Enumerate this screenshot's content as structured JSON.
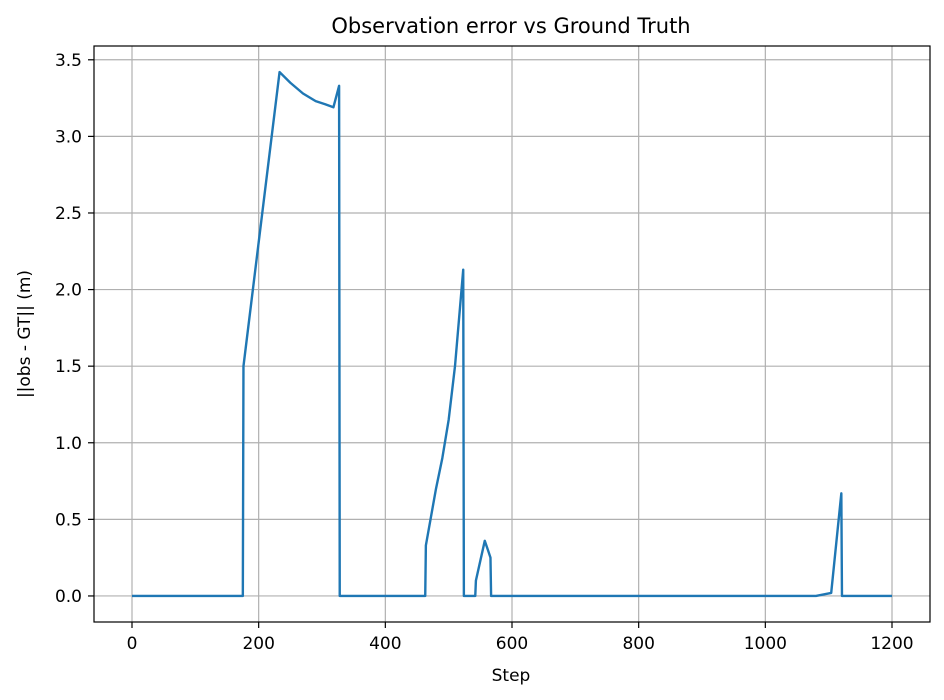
{
  "chart_data": {
    "type": "line",
    "title": "Observation error vs Ground Truth",
    "xlabel": "Step",
    "ylabel": "||obs - GT|| (m)",
    "xlim": [
      -60,
      1260
    ],
    "ylim": [
      -0.17,
      3.59
    ],
    "x_ticks": [
      0,
      200,
      400,
      600,
      800,
      1000,
      1200
    ],
    "y_ticks": [
      0.0,
      0.5,
      1.0,
      1.5,
      2.0,
      2.5,
      3.0,
      3.5
    ],
    "x_tick_labels": [
      "0",
      "200",
      "400",
      "600",
      "800",
      "1000",
      "1200"
    ],
    "y_tick_labels": [
      "0.0",
      "0.5",
      "1.0",
      "1.5",
      "2.0",
      "2.5",
      "3.0",
      "3.5"
    ],
    "grid": true,
    "series": [
      {
        "color": "#1f77b4",
        "x": [
          0,
          175,
          176,
          233,
          250,
          270,
          290,
          305,
          318,
          327,
          328,
          400,
          463,
          464,
          480,
          490,
          500,
          510,
          523,
          524,
          542,
          543,
          557,
          562,
          566,
          567,
          600,
          800,
          1000,
          1080,
          1104,
          1120,
          1121,
          1200
        ],
        "y": [
          0.0,
          0.0,
          1.5,
          3.42,
          3.35,
          3.28,
          3.23,
          3.21,
          3.19,
          3.33,
          0.0,
          0.0,
          0.0,
          0.33,
          0.7,
          0.9,
          1.15,
          1.5,
          2.13,
          0.0,
          0.0,
          0.1,
          0.36,
          0.3,
          0.25,
          0.0,
          0.0,
          0.0,
          0.0,
          0.0,
          0.02,
          0.67,
          0.0,
          0.0
        ]
      }
    ]
  }
}
